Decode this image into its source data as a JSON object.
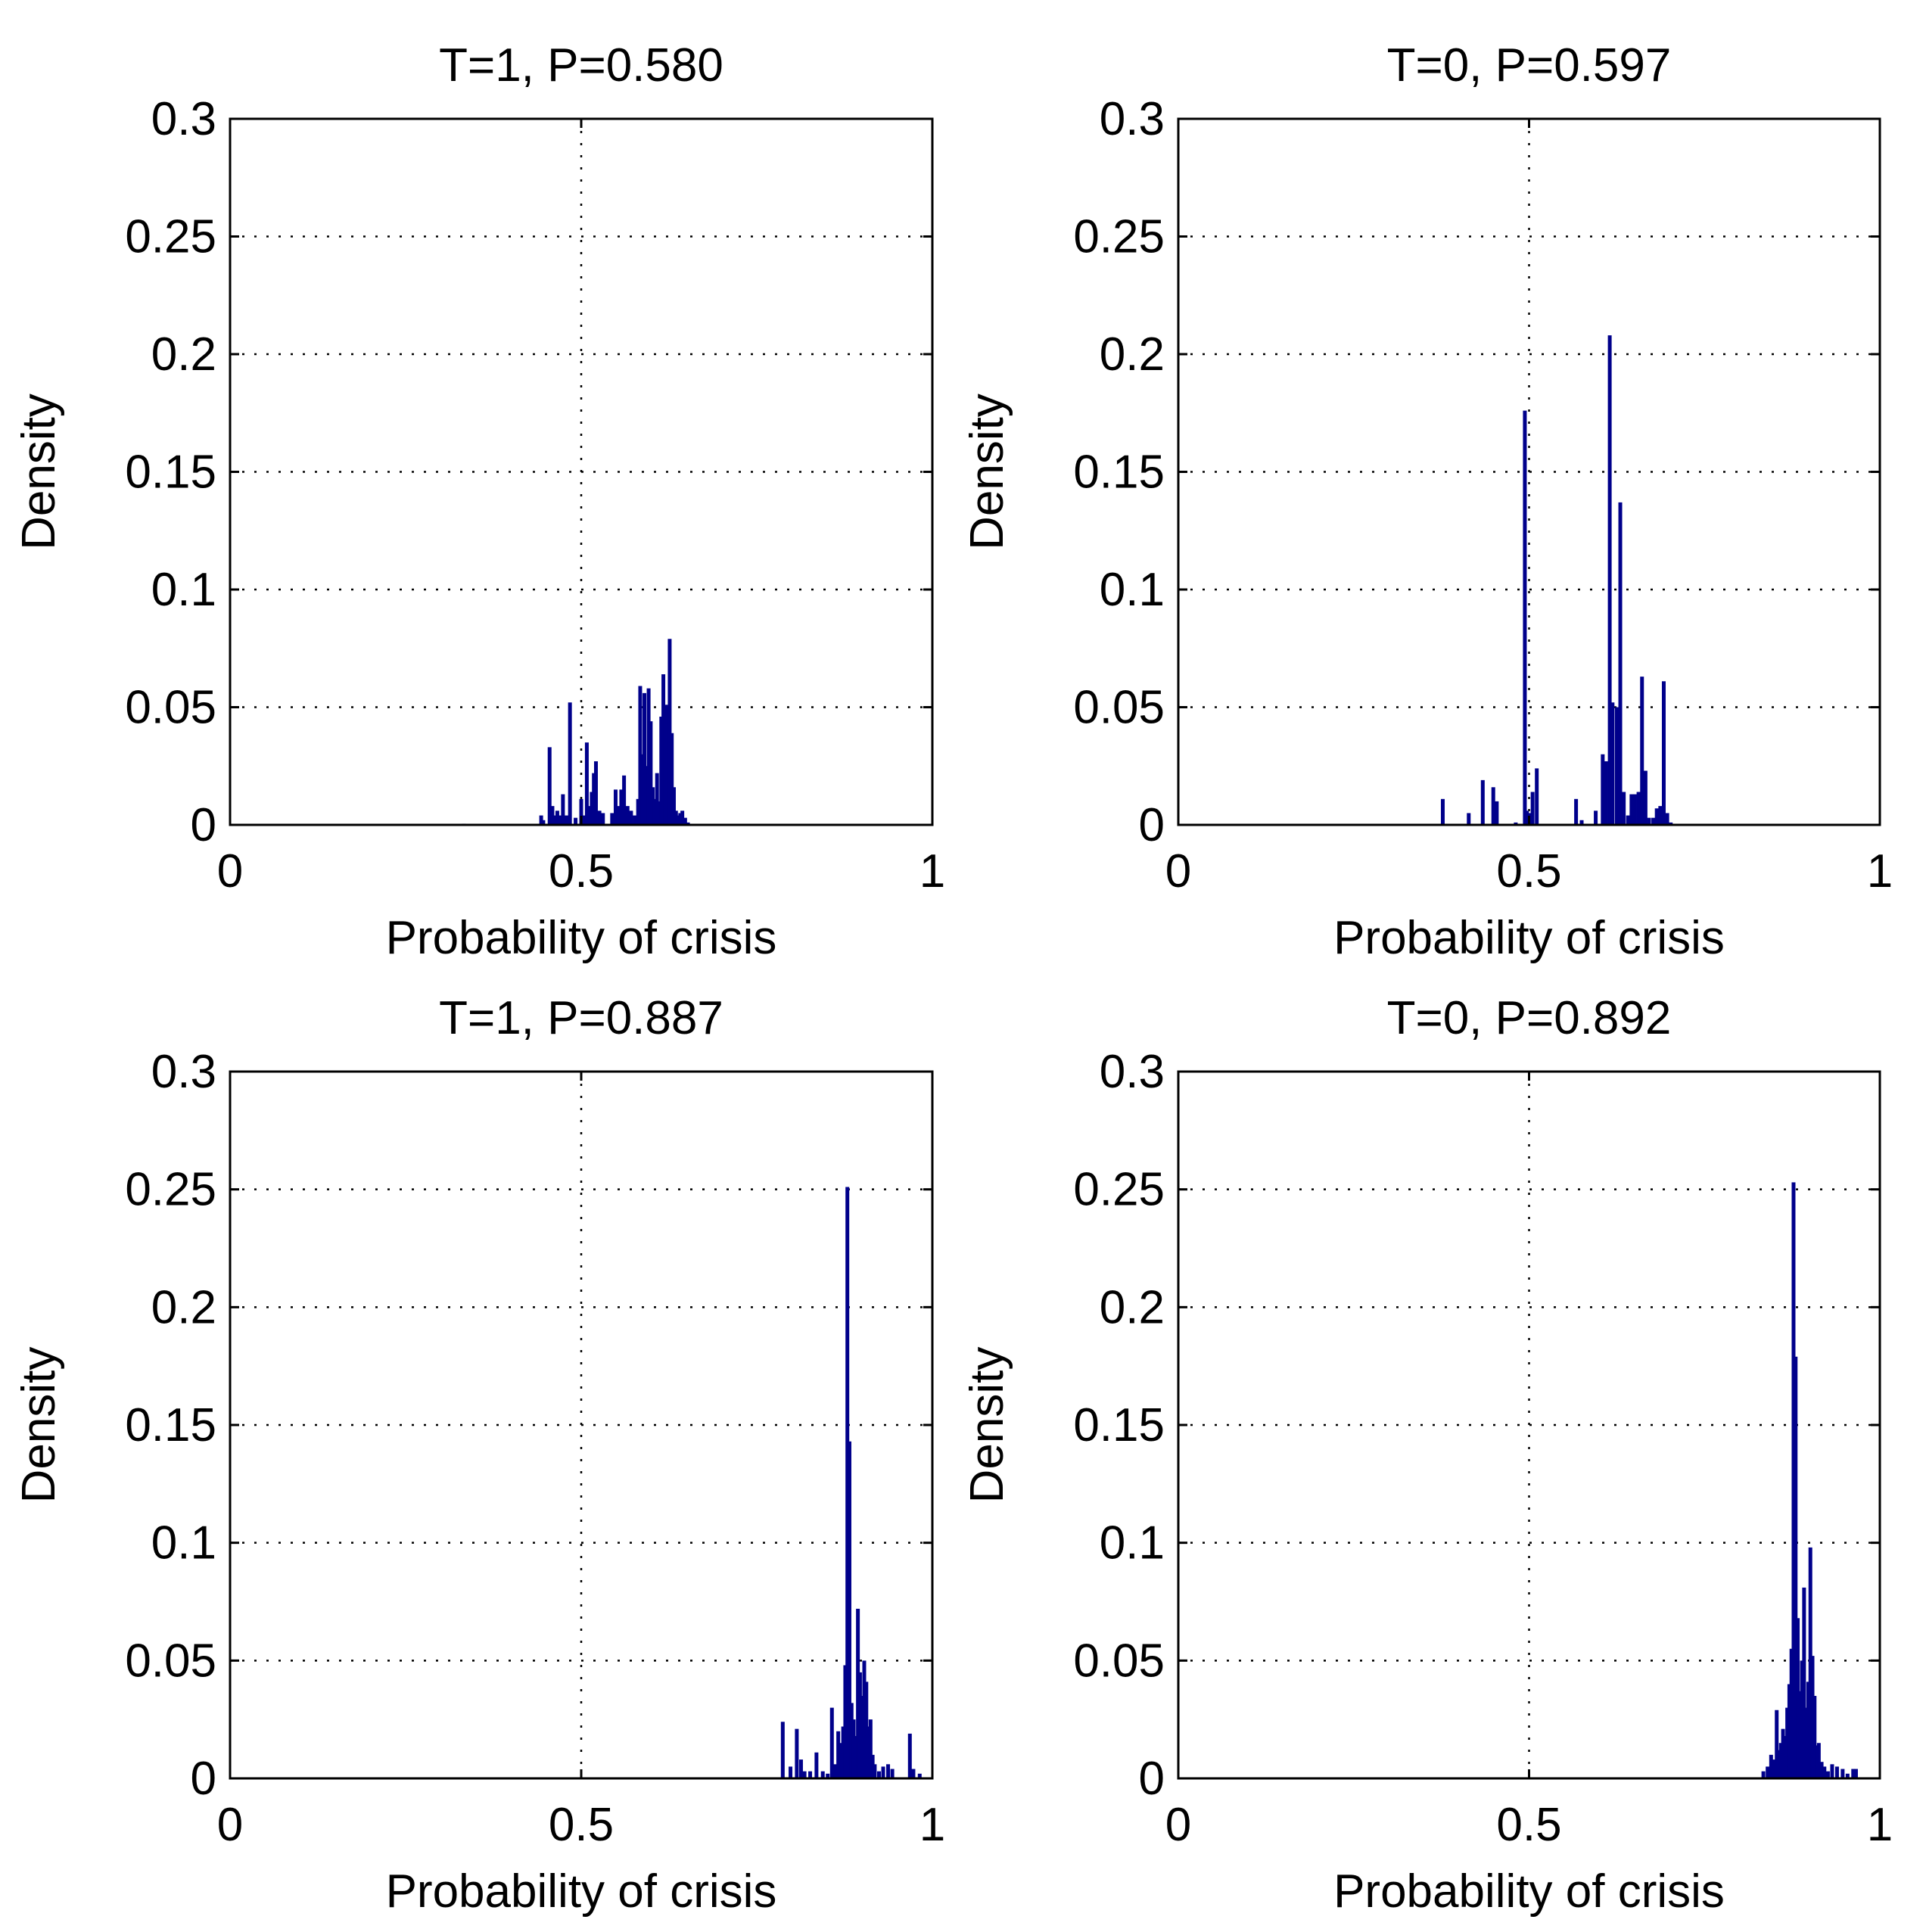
{
  "chart_data": [
    {
      "type": "bar",
      "title": "T=1, P=0.580",
      "xlabel": "Probability of crisis",
      "ylabel": "Density",
      "xlim": [
        0,
        1
      ],
      "ylim": [
        0,
        0.3
      ],
      "xticks": [
        0,
        0.5,
        1
      ],
      "xtick_labels": [
        "0",
        "0.5",
        "1"
      ],
      "yticks": [
        0,
        0.05,
        0.1,
        0.15,
        0.2,
        0.25,
        0.3
      ],
      "ytick_labels": [
        "0",
        "0.05",
        "0.1",
        "0.15",
        "0.2",
        "0.25",
        "0.3"
      ],
      "grid": true,
      "color": "#00008b",
      "series": [
        {
          "name": "density",
          "x": [
            0.333,
            0.443,
            0.446,
            0.455,
            0.459,
            0.462,
            0.466,
            0.47,
            0.474,
            0.479,
            0.484,
            0.492,
            0.5,
            0.505,
            0.508,
            0.511,
            0.515,
            0.518,
            0.521,
            0.526,
            0.531,
            0.544,
            0.549,
            0.553,
            0.557,
            0.561,
            0.566,
            0.571,
            0.576,
            0.581,
            0.584,
            0.587,
            0.59,
            0.593,
            0.596,
            0.599,
            0.602,
            0.605,
            0.608,
            0.611,
            0.614,
            0.617,
            0.62,
            0.623,
            0.626,
            0.629,
            0.632,
            0.635,
            0.638,
            0.641,
            0.644,
            0.648,
            0.652
          ],
          "y": [
            0.0005,
            0.004,
            0.002,
            0.033,
            0.008,
            0.004,
            0.006,
            0.004,
            0.013,
            0.004,
            0.052,
            0.003,
            0.011,
            0.004,
            0.035,
            0.008,
            0.014,
            0.022,
            0.027,
            0.006,
            0.005,
            0.005,
            0.015,
            0.008,
            0.015,
            0.021,
            0.008,
            0.006,
            0.004,
            0.011,
            0.059,
            0.03,
            0.056,
            0.025,
            0.058,
            0.044,
            0.016,
            0.011,
            0.022,
            0.01,
            0.046,
            0.064,
            0.051,
            0.051,
            0.079,
            0.039,
            0.016,
            0.006,
            0.004,
            0.005,
            0.006,
            0.003,
            0.001
          ]
        }
      ]
    },
    {
      "type": "bar",
      "title": "T=0, P=0.597",
      "xlabel": "Probability of crisis",
      "ylabel": "Density",
      "xlim": [
        0,
        1
      ],
      "ylim": [
        0,
        0.3
      ],
      "xticks": [
        0,
        0.5,
        1
      ],
      "xtick_labels": [
        "0",
        "0.5",
        "1"
      ],
      "yticks": [
        0,
        0.05,
        0.1,
        0.15,
        0.2,
        0.25,
        0.3
      ],
      "ytick_labels": [
        "0",
        "0.05",
        "0.1",
        "0.15",
        "0.2",
        "0.25",
        "0.3"
      ],
      "grid": true,
      "color": "#00008b",
      "series": [
        {
          "name": "density",
          "x": [
            0.377,
            0.414,
            0.434,
            0.449,
            0.454,
            0.481,
            0.494,
            0.497,
            0.5,
            0.505,
            0.511,
            0.567,
            0.575,
            0.595,
            0.605,
            0.61,
            0.615,
            0.619,
            0.625,
            0.63,
            0.635,
            0.641,
            0.646,
            0.651,
            0.656,
            0.661,
            0.666,
            0.671,
            0.677,
            0.682,
            0.687,
            0.692,
            0.697,
            0.702
          ],
          "y": [
            0.011,
            0.005,
            0.019,
            0.016,
            0.01,
            0.001,
            0.176,
            0.006,
            0.005,
            0.014,
            0.024,
            0.011,
            0.002,
            0.006,
            0.03,
            0.027,
            0.208,
            0.052,
            0.05,
            0.137,
            0.014,
            0.004,
            0.013,
            0.013,
            0.014,
            0.063,
            0.023,
            0.003,
            0.003,
            0.007,
            0.008,
            0.061,
            0.005,
            0.001
          ]
        }
      ]
    },
    {
      "type": "bar",
      "title": "T=1, P=0.887",
      "xlabel": "Probability of crisis",
      "ylabel": "Density",
      "xlim": [
        0,
        1
      ],
      "ylim": [
        0,
        0.3
      ],
      "xticks": [
        0,
        0.5,
        1
      ],
      "xtick_labels": [
        "0",
        "0.5",
        "1"
      ],
      "yticks": [
        0,
        0.05,
        0.1,
        0.15,
        0.2,
        0.25,
        0.3
      ],
      "ytick_labels": [
        "0",
        "0.05",
        "0.1",
        "0.15",
        "0.2",
        "0.25",
        "0.3"
      ],
      "grid": true,
      "color": "#00008b",
      "series": [
        {
          "name": "density",
          "x": [
            0.787,
            0.798,
            0.807,
            0.813,
            0.818,
            0.826,
            0.835,
            0.844,
            0.851,
            0.857,
            0.862,
            0.866,
            0.87,
            0.873,
            0.876,
            0.879,
            0.882,
            0.885,
            0.888,
            0.891,
            0.894,
            0.897,
            0.9,
            0.903,
            0.906,
            0.909,
            0.912,
            0.915,
            0.918,
            0.924,
            0.93,
            0.937,
            0.943,
            0.968,
            0.973,
            0.982
          ],
          "y": [
            0.024,
            0.005,
            0.021,
            0.008,
            0.003,
            0.003,
            0.011,
            0.003,
            0.002,
            0.03,
            0.006,
            0.02,
            0.015,
            0.022,
            0.048,
            0.251,
            0.143,
            0.032,
            0.025,
            0.018,
            0.072,
            0.045,
            0.035,
            0.05,
            0.041,
            0.022,
            0.025,
            0.01,
            0.006,
            0.003,
            0.005,
            0.006,
            0.004,
            0.019,
            0.004,
            0.002
          ]
        }
      ]
    },
    {
      "type": "bar",
      "title": "T=0, P=0.892",
      "xlabel": "Probability of crisis",
      "ylabel": "Density",
      "xlim": [
        0,
        1
      ],
      "ylim": [
        0,
        0.3
      ],
      "xticks": [
        0,
        0.5,
        1
      ],
      "xtick_labels": [
        "0",
        "0.5",
        "1"
      ],
      "yticks": [
        0,
        0.05,
        0.1,
        0.15,
        0.2,
        0.25,
        0.3
      ],
      "ytick_labels": [
        "0",
        "0.05",
        "0.1",
        "0.15",
        "0.2",
        "0.25",
        "0.3"
      ],
      "grid": true,
      "color": "#00008b",
      "series": [
        {
          "name": "density",
          "x": [
            0.834,
            0.84,
            0.845,
            0.849,
            0.853,
            0.856,
            0.859,
            0.862,
            0.865,
            0.868,
            0.871,
            0.874,
            0.877,
            0.88,
            0.883,
            0.886,
            0.889,
            0.892,
            0.895,
            0.898,
            0.901,
            0.904,
            0.907,
            0.91,
            0.913,
            0.917,
            0.921,
            0.926,
            0.932,
            0.939,
            0.947,
            0.954,
            0.962,
            0.966
          ],
          "y": [
            0.003,
            0.005,
            0.01,
            0.008,
            0.029,
            0.012,
            0.015,
            0.021,
            0.018,
            0.03,
            0.04,
            0.055,
            0.253,
            0.179,
            0.068,
            0.037,
            0.05,
            0.081,
            0.03,
            0.041,
            0.098,
            0.052,
            0.035,
            0.014,
            0.015,
            0.007,
            0.005,
            0.003,
            0.006,
            0.005,
            0.004,
            0.002,
            0.004,
            0.004
          ]
        }
      ]
    }
  ]
}
